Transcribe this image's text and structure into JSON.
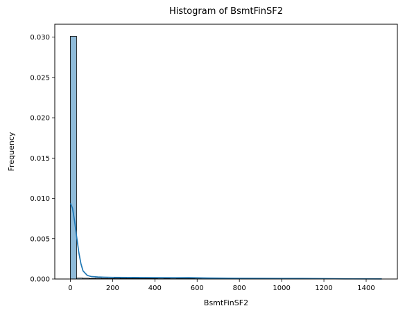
{
  "chart_data": {
    "type": "bar",
    "title": "Histogram of BsmtFinSF2",
    "xlabel": "BsmtFinSF2",
    "ylabel": "Frequency",
    "xlim": [
      -73.7,
      1547.7
    ],
    "ylim": [
      0,
      0.0316
    ],
    "x_ticks": [
      0,
      200,
      400,
      600,
      800,
      1000,
      1200,
      1400
    ],
    "y_ticks": [
      0.0,
      0.005,
      0.01,
      0.015,
      0.02,
      0.025,
      0.03
    ],
    "y_tick_labels": [
      "0.000",
      "0.005",
      "0.010",
      "0.015",
      "0.020",
      "0.025",
      "0.030"
    ],
    "grid": false,
    "bar_color": "#1f77b4",
    "bar_fill_opacity": 0.5,
    "kde_color": "#1f77b4",
    "bins": {
      "start": 0,
      "width": 29.48,
      "values": [
        0.0301,
        0.00012,
        0.0001,
        7e-05,
        9e-05,
        7e-05,
        6e-05,
        9e-05,
        8e-05,
        7e-05,
        8e-05,
        6e-05,
        7e-05,
        5e-05,
        4e-05,
        6e-05,
        4e-05,
        6e-05,
        8e-05,
        5e-05,
        4e-05,
        3e-05,
        3e-05,
        3e-05,
        2e-05,
        2e-05,
        3e-05,
        2e-05,
        2e-05,
        1e-05,
        2e-05,
        1e-05,
        2e-05,
        1e-05,
        1e-05,
        2e-05,
        3e-05,
        1e-05,
        1e-05,
        2e-05,
        1e-05,
        1e-05,
        1e-05,
        1e-05,
        1e-05,
        1e-05,
        1e-05,
        0.0,
        0.0,
        1e-05
      ]
    },
    "kde": {
      "x": [
        0,
        10,
        20,
        30,
        40,
        50,
        60,
        80,
        100,
        130,
        160,
        200,
        300,
        400,
        500,
        560,
        650,
        800,
        1000,
        1100,
        1200,
        1300,
        1474
      ],
      "y": [
        0.0094,
        0.0088,
        0.0072,
        0.0052,
        0.0033,
        0.0019,
        0.001,
        0.00045,
        0.0003,
        0.00025,
        0.00022,
        0.0002,
        0.00018,
        0.00016,
        0.00015,
        0.00016,
        0.00012,
        9e-05,
        7e-05,
        7e-05,
        4e-05,
        2e-05,
        1e-05
      ]
    }
  }
}
